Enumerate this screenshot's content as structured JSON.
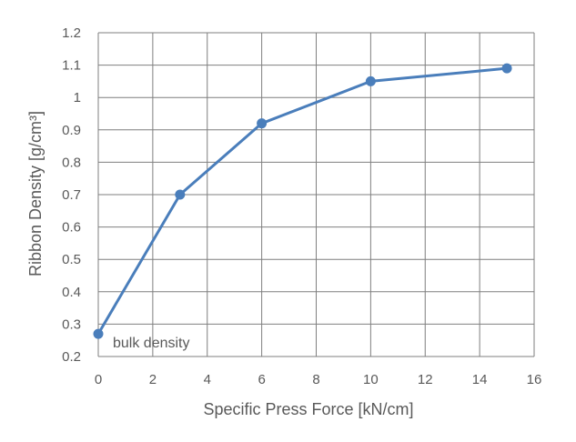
{
  "chart_data": {
    "type": "line",
    "title": "",
    "xlabel": "Specific Press Force [kN/cm]",
    "ylabel": "Ribbon Density [g/cm³]",
    "xlim": [
      0,
      16
    ],
    "ylim": [
      0.2,
      1.2
    ],
    "x_ticks": [
      0,
      2,
      4,
      6,
      8,
      10,
      12,
      14,
      16
    ],
    "y_ticks": [
      0.2,
      0.3,
      0.4,
      0.5,
      0.6,
      0.7,
      0.8,
      0.9,
      1,
      1.1,
      1.2
    ],
    "grid": true,
    "legend": "none",
    "series": [
      {
        "color": "#4a7ebb",
        "points": [
          {
            "x": 0,
            "y": 0.27
          },
          {
            "x": 3,
            "y": 0.7
          },
          {
            "x": 6,
            "y": 0.92
          },
          {
            "x": 10,
            "y": 1.05
          },
          {
            "x": 15,
            "y": 1.09
          }
        ]
      }
    ],
    "annotations": [
      {
        "text": "bulk density",
        "x": 0,
        "y": 0.27
      }
    ],
    "colors": {
      "line": "#4a7ebb",
      "grid": "#7f7f7f",
      "text": "#595959"
    }
  }
}
